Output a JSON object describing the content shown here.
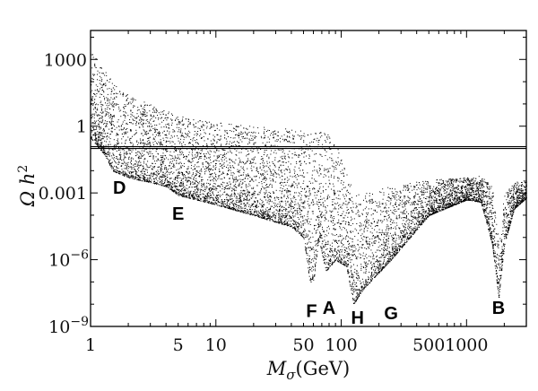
{
  "chart_data": {
    "type": "scatter",
    "xlabel": "Mσ(GeV)",
    "xlabel_parts": {
      "symbol": "M",
      "subscript": "σ",
      "unit": "(GeV)"
    },
    "ylabel": "Ω h2",
    "ylabel_parts": {
      "symbol": "Ω h",
      "superscript": "2"
    },
    "x_scale": "log",
    "y_scale": "log",
    "xlim": [
      1,
      3000
    ],
    "ylim": [
      1e-09,
      20000
    ],
    "x_ticks": [
      {
        "value": 1,
        "label": "1"
      },
      {
        "value": 5,
        "label": "5"
      },
      {
        "value": 10,
        "label": "10"
      },
      {
        "value": 50,
        "label": "50"
      },
      {
        "value": 100,
        "label": "100"
      },
      {
        "value": 500,
        "label": "500"
      },
      {
        "value": 1000,
        "label": "1000"
      }
    ],
    "y_ticks": [
      {
        "value": 1000,
        "label": "1000"
      },
      {
        "value": 1,
        "label": "1"
      },
      {
        "value": 0.001,
        "label": "0.001"
      },
      {
        "value": 1e-06,
        "label": "10",
        "exponent": "−6"
      },
      {
        "value": 1e-09,
        "label": "10",
        "exponent": "−9"
      }
    ],
    "reference_lines": [
      0.1,
      0.12
    ],
    "grid": false,
    "point_color": "#000000",
    "region_labels": [
      {
        "label": "D",
        "x": 1.7,
        "y": 0.0018
      },
      {
        "label": "E",
        "x": 5.0,
        "y": 0.00012
      },
      {
        "label": "F",
        "x": 58,
        "y": 5e-09
      },
      {
        "label": "A",
        "x": 80,
        "y": 7e-09
      },
      {
        "label": "H",
        "x": 135,
        "y": 2.5e-09
      },
      {
        "label": "G",
        "x": 250,
        "y": 4e-09
      },
      {
        "label": "B",
        "x": 1800,
        "y": 7e-09
      }
    ],
    "band_profile": [
      {
        "x": 1.0,
        "ymin": 0.3,
        "ymax": 3000
      },
      {
        "x": 1.3,
        "ymin": 0.05,
        "ymax": 300
      },
      {
        "x": 1.5,
        "ymin": 0.01,
        "ymax": 100
      },
      {
        "x": 2,
        "ymin": 0.005,
        "ymax": 30
      },
      {
        "x": 3,
        "ymin": 0.003,
        "ymax": 10
      },
      {
        "x": 4,
        "ymin": 0.002,
        "ymax": 5
      },
      {
        "x": 5,
        "ymin": 0.0008,
        "ymax": 3
      },
      {
        "x": 10,
        "ymin": 0.0003,
        "ymax": 1.5
      },
      {
        "x": 20,
        "ymin": 0.0001,
        "ymax": 1
      },
      {
        "x": 40,
        "ymin": 3e-05,
        "ymax": 0.8
      },
      {
        "x": 50,
        "ymin": 1e-05,
        "ymax": 0.6
      },
      {
        "x": 56,
        "ymin": 1e-07,
        "ymax": 0.5
      },
      {
        "x": 60,
        "ymin": 1e-07,
        "ymax": 0.5
      },
      {
        "x": 66,
        "ymin": 1e-05,
        "ymax": 0.6
      },
      {
        "x": 75,
        "ymin": 3e-07,
        "ymax": 0.5
      },
      {
        "x": 90,
        "ymin": 1e-06,
        "ymax": 0.3
      },
      {
        "x": 110,
        "ymin": 5e-07,
        "ymax": 0.01
      },
      {
        "x": 125,
        "ymin": 1e-08,
        "ymax": 0.001
      },
      {
        "x": 150,
        "ymin": 5e-08,
        "ymax": 0.001
      },
      {
        "x": 250,
        "ymin": 1e-06,
        "ymax": 0.002
      },
      {
        "x": 500,
        "ymin": 0.0001,
        "ymax": 0.004
      },
      {
        "x": 1000,
        "ymin": 0.0005,
        "ymax": 0.005
      },
      {
        "x": 1300,
        "ymin": 0.0004,
        "ymax": 0.006
      },
      {
        "x": 1600,
        "ymin": 5e-06,
        "ymax": 0.002
      },
      {
        "x": 1800,
        "ymin": 2e-08,
        "ymax": 1e-05
      },
      {
        "x": 2000,
        "ymin": 5e-06,
        "ymax": 0.001
      },
      {
        "x": 2400,
        "ymin": 0.0002,
        "ymax": 0.003
      },
      {
        "x": 3000,
        "ymin": 0.0006,
        "ymax": 0.004
      }
    ]
  }
}
